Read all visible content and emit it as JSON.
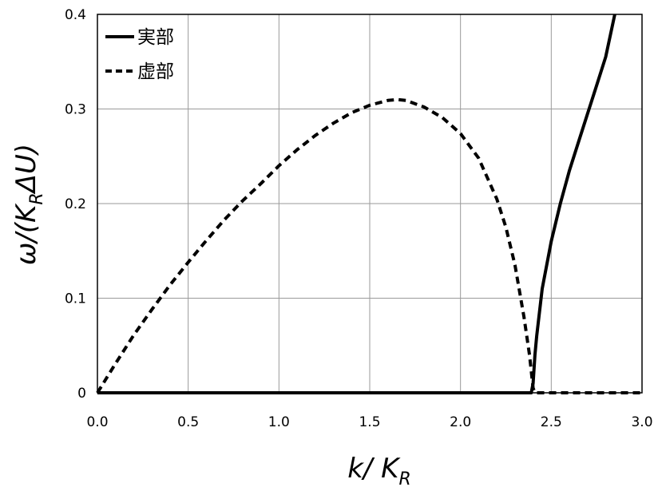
{
  "chart_data": {
    "type": "line",
    "xlim": [
      0,
      3.0
    ],
    "ylim": [
      0,
      0.4
    ],
    "xticks": [
      0,
      0.5,
      1.0,
      1.5,
      2.0,
      2.5,
      3.0
    ],
    "xtick_labels": [
      "0.0",
      "0.5",
      "1.0",
      "1.5",
      "2.0",
      "2.5",
      "3.0"
    ],
    "yticks": [
      0,
      0.1,
      0.2,
      0.3,
      0.4
    ],
    "ytick_labels": [
      "0",
      "0.1",
      "0.2",
      "0.3",
      "0.4"
    ],
    "xlabel": {
      "main": "k/ K",
      "sub": "R"
    },
    "ylabel": {
      "pre": "ω/(K",
      "sub": "R",
      "post": "ΔU)"
    },
    "grid": true,
    "legend_position": "top-left",
    "series": [
      {
        "name": "実部",
        "style": "solid",
        "color": "#000000",
        "x": [
          0,
          0.5,
          1.0,
          1.5,
          2.0,
          2.39,
          2.4,
          2.41,
          2.42,
          2.45,
          2.5,
          2.55,
          2.6,
          2.65,
          2.7,
          2.75,
          2.8,
          2.85
        ],
        "y": [
          0,
          0,
          0,
          0,
          0,
          0,
          0.01,
          0.04,
          0.06,
          0.11,
          0.16,
          0.2,
          0.235,
          0.265,
          0.295,
          0.325,
          0.355,
          0.4
        ]
      },
      {
        "name": "虚部",
        "style": "dashed",
        "color": "#000000",
        "x": [
          0,
          0.1,
          0.2,
          0.3,
          0.4,
          0.5,
          0.6,
          0.7,
          0.8,
          0.9,
          1.0,
          1.1,
          1.2,
          1.3,
          1.4,
          1.5,
          1.6,
          1.65,
          1.7,
          1.8,
          1.9,
          2.0,
          2.1,
          2.2,
          2.25,
          2.3,
          2.35,
          2.38,
          2.4,
          2.41,
          2.5,
          2.7,
          3.0
        ],
        "y": [
          0,
          0.031,
          0.061,
          0.088,
          0.114,
          0.138,
          0.161,
          0.183,
          0.203,
          0.221,
          0.24,
          0.257,
          0.272,
          0.285,
          0.296,
          0.304,
          0.309,
          0.31,
          0.309,
          0.302,
          0.291,
          0.274,
          0.248,
          0.205,
          0.175,
          0.135,
          0.08,
          0.04,
          0.005,
          0,
          0,
          0,
          0
        ]
      }
    ]
  }
}
